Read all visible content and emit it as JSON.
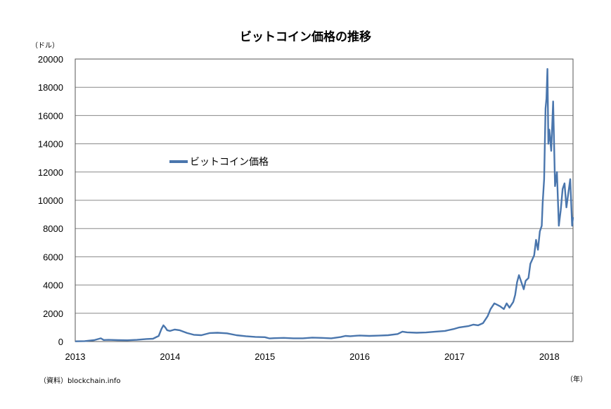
{
  "chart_data": {
    "type": "line",
    "title": "ビットコイン価格の推移",
    "y_unit": "（ドル）",
    "x_unit": "（年）",
    "source": "（資料）blockchain.info",
    "legend_position": "upper-left",
    "grid": true,
    "ylim": [
      0,
      20000
    ],
    "xlim": [
      2013.0,
      2018.25
    ],
    "yticks": [
      "0",
      "2000",
      "4000",
      "6000",
      "8000",
      "10000",
      "12000",
      "14000",
      "16000",
      "18000",
      "20000"
    ],
    "xticks": [
      "2013",
      "2014",
      "2015",
      "2016",
      "2017",
      "2018"
    ],
    "color": "#4a76ad",
    "series": [
      {
        "name": "ビットコイン価格",
        "x": [
          2013.0,
          2013.1,
          2013.2,
          2013.27,
          2013.3,
          2013.35,
          2013.45,
          2013.55,
          2013.65,
          2013.75,
          2013.82,
          2013.88,
          2013.91,
          2013.93,
          2013.95,
          2013.97,
          2014.0,
          2014.05,
          2014.1,
          2014.18,
          2014.25,
          2014.33,
          2014.42,
          2014.5,
          2014.6,
          2014.7,
          2014.8,
          2014.9,
          2015.0,
          2015.05,
          2015.1,
          2015.2,
          2015.3,
          2015.4,
          2015.5,
          2015.6,
          2015.7,
          2015.8,
          2015.85,
          2015.9,
          2016.0,
          2016.1,
          2016.2,
          2016.3,
          2016.4,
          2016.45,
          2016.5,
          2016.6,
          2016.7,
          2016.8,
          2016.9,
          2017.0,
          2017.05,
          2017.1,
          2017.15,
          2017.2,
          2017.25,
          2017.3,
          2017.35,
          2017.38,
          2017.42,
          2017.45,
          2017.48,
          2017.52,
          2017.55,
          2017.58,
          2017.62,
          2017.64,
          2017.66,
          2017.68,
          2017.71,
          2017.73,
          2017.75,
          2017.78,
          2017.8,
          2017.82,
          2017.84,
          2017.86,
          2017.88,
          2017.9,
          2017.92,
          2017.93,
          2017.945,
          2017.96,
          2017.97,
          2017.98,
          2017.99,
          2018.0,
          2018.02,
          2018.04,
          2018.06,
          2018.08,
          2018.1,
          2018.12,
          2018.14,
          2018.16,
          2018.18,
          2018.2,
          2018.22,
          2018.24,
          2018.25
        ],
        "values": [
          13,
          30,
          100,
          230,
          110,
          120,
          100,
          90,
          120,
          180,
          200,
          400,
          900,
          1150,
          1000,
          800,
          750,
          850,
          800,
          600,
          480,
          450,
          600,
          620,
          580,
          450,
          380,
          330,
          310,
          220,
          240,
          260,
          230,
          230,
          280,
          260,
          230,
          320,
          400,
          380,
          430,
          400,
          420,
          450,
          530,
          700,
          650,
          620,
          640,
          700,
          750,
          900,
          1000,
          1050,
          1100,
          1200,
          1150,
          1300,
          1800,
          2300,
          2700,
          2600,
          2500,
          2300,
          2700,
          2400,
          2800,
          3300,
          4200,
          4700,
          4100,
          3700,
          4300,
          4500,
          5500,
          5800,
          6100,
          7200,
          6500,
          7800,
          8200,
          9800,
          11500,
          16500,
          17200,
          19300,
          14000,
          15000,
          13500,
          17000,
          11000,
          12000,
          8200,
          9300,
          10800,
          11200,
          9500,
          10500,
          11500,
          8200,
          8800
        ]
      }
    ]
  }
}
